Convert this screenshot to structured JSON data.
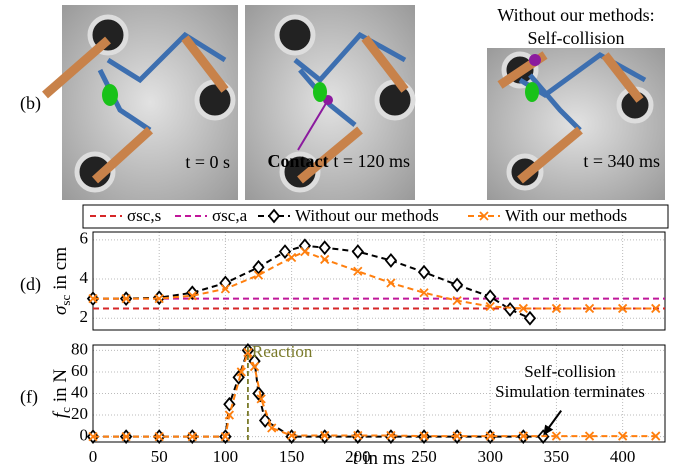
{
  "panel_b": {
    "label": "(b)",
    "frames": [
      {
        "time": "t = 0 s"
      },
      {
        "annotation": "Contact",
        "time": "t = 120 ms"
      },
      {
        "title_lines": [
          "Without our methods:",
          "Self-collision"
        ],
        "time": "t = 340 ms"
      }
    ]
  },
  "chart_data": [
    {
      "type": "line",
      "label": "(d)",
      "ylabel_symbol": "σ",
      "ylabel_subscript": "sc",
      "ylabel_unit": "in cm",
      "xlim": [
        0,
        432
      ],
      "ylim": [
        1.4,
        6.4
      ],
      "xticks": [
        0,
        50,
        100,
        150,
        200,
        250,
        300,
        350,
        400
      ],
      "yticks": [
        2,
        4,
        6
      ],
      "grid": true,
      "series": [
        {
          "name": "σsc,s",
          "color": "#d62728",
          "marker": "none",
          "x": [
            0,
            432
          ],
          "values": [
            2.5,
            2.5
          ]
        },
        {
          "name": "σsc,a",
          "color": "#c0179a",
          "marker": "none",
          "x": [
            0,
            432
          ],
          "values": [
            3.0,
            3.0
          ]
        },
        {
          "name": "Without our methods",
          "color": "#000000",
          "marker": "diamond",
          "x": [
            0,
            25,
            50,
            75,
            100,
            125,
            145,
            160,
            175,
            200,
            225,
            250,
            275,
            300,
            315,
            330
          ],
          "values": [
            3.0,
            3.0,
            3.05,
            3.3,
            3.8,
            4.6,
            5.4,
            5.7,
            5.6,
            5.4,
            4.95,
            4.35,
            3.7,
            3.1,
            2.45,
            2.0
          ]
        },
        {
          "name": "With our methods",
          "color": "#ff7f0e",
          "marker": "x",
          "x": [
            0,
            25,
            50,
            75,
            100,
            125,
            150,
            160,
            175,
            200,
            225,
            250,
            275,
            300,
            325,
            350,
            375,
            400,
            425
          ],
          "values": [
            3.0,
            3.0,
            3.0,
            3.15,
            3.5,
            4.2,
            5.1,
            5.4,
            5.0,
            4.4,
            3.8,
            3.3,
            2.9,
            2.6,
            2.5,
            2.5,
            2.5,
            2.5,
            2.5
          ]
        }
      ]
    },
    {
      "type": "line",
      "label": "(f)",
      "ylabel_symbol": "f",
      "ylabel_subscript": "c",
      "ylabel_unit": "in N",
      "xlabel_symbol": "t",
      "xlabel_unit": "in ms",
      "xlim": [
        0,
        432
      ],
      "ylim": [
        -5,
        85
      ],
      "xticks": [
        0,
        50,
        100,
        150,
        200,
        250,
        300,
        350,
        400
      ],
      "yticks": [
        0,
        20,
        40,
        60,
        80
      ],
      "grid": true,
      "series": [
        {
          "color": "#000000",
          "marker": "diamond",
          "x": [
            0,
            25,
            50,
            75,
            100,
            103,
            110,
            117,
            122,
            125,
            130,
            150,
            175,
            200,
            225,
            250,
            275,
            300,
            325,
            340
          ],
          "values": [
            0,
            0,
            0,
            0,
            0,
            30,
            55,
            80,
            70,
            40,
            15,
            0,
            0,
            0,
            0,
            0,
            0,
            0,
            0,
            0
          ]
        },
        {
          "color": "#ff7f0e",
          "marker": "x",
          "x": [
            0,
            25,
            50,
            75,
            100,
            103,
            112,
            117,
            122,
            127,
            135,
            150,
            175,
            200,
            225,
            250,
            275,
            300,
            325,
            350,
            375,
            400,
            425
          ],
          "values": [
            0,
            0,
            0,
            0,
            0,
            20,
            60,
            78,
            65,
            35,
            8,
            1,
            1,
            1,
            1,
            0.5,
            0.5,
            0.5,
            0.5,
            0.5,
            0.5,
            0.5,
            0.5
          ]
        }
      ],
      "annotations": [
        {
          "text": "Reaction",
          "x": 117,
          "color": "#7a7a2a"
        },
        {
          "lines": [
            "Self-collision",
            "Simulation terminates"
          ],
          "x": 340,
          "y": 0
        }
      ]
    }
  ]
}
